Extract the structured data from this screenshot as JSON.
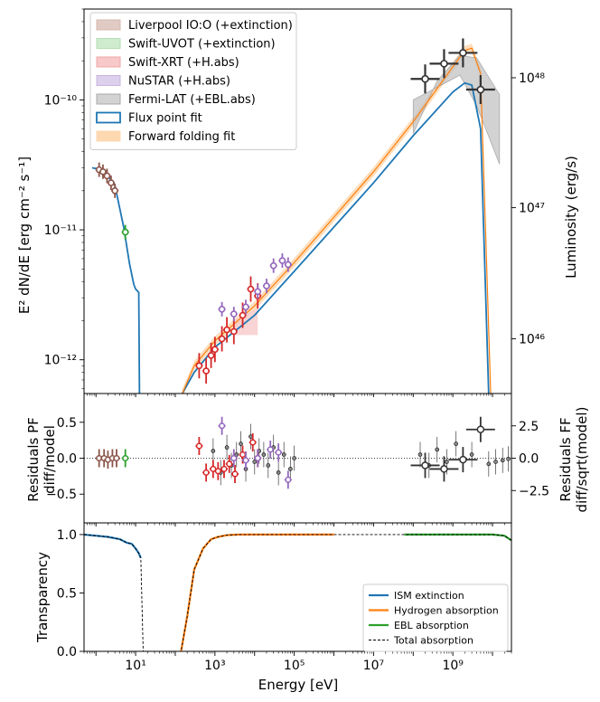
{
  "chart_data": [
    {
      "type": "scatter",
      "panel": "sed",
      "xscale": "log",
      "yscale": "log",
      "xlim": [
        0.5,
        30000000000
      ],
      "ylim": [
        5.5e-13,
        5e-10
      ],
      "ylabel": "E² dN/dE [erg cm⁻² s⁻¹]",
      "y2label": "Luminosity (erg/s)",
      "yticks": [
        {
          "v": 1e-12,
          "label": "10⁻¹²"
        },
        {
          "v": 1e-11,
          "label": "10⁻¹¹"
        },
        {
          "v": 1e-10,
          "label": "10⁻¹⁰"
        }
      ],
      "y2ticks": [
        {
          "v": 1.45e-12,
          "label": "10⁴⁶"
        },
        {
          "v": 1.48e-11,
          "label": "10⁴⁷"
        },
        {
          "v": 1.48e-10,
          "label": "10⁴⁸"
        }
      ],
      "legend_position": "top-left",
      "legend": [
        {
          "label": "Liverpool IO:O (+extinction)",
          "color": "#e0cbc4",
          "stroke": "#d7b8ad"
        },
        {
          "label": "Swift-UVOT (+extinction)",
          "color": "#cfeccf",
          "stroke": "#b2dfb2"
        },
        {
          "label": "Swift-XRT (+H.abs)",
          "color": "#f7c9c9",
          "stroke": "#f0a7a7"
        },
        {
          "label": "NuSTAR (+H.abs)",
          "color": "#ddd0ec",
          "stroke": "#c8b4e2"
        },
        {
          "label": "Fermi-LAT (+EBL.abs)",
          "color": "#d3d3d3",
          "stroke": "#aaaaaa"
        },
        {
          "label": "Flux point fit",
          "color": "#ffffff",
          "stroke": "#1f77b4"
        },
        {
          "label": "Forward folding fit",
          "color": "#fdd8b0",
          "stroke": "#fdd8b0"
        }
      ],
      "series": [
        {
          "name": "Liverpool IO:O (+extinction)",
          "color": "#8c564b",
          "points": [
            [
              1.2,
              2.9e-11
            ],
            [
              1.5,
              2.8e-11
            ],
            [
              1.9,
              2.6e-11
            ],
            [
              2.4,
              2.3e-11
            ],
            [
              3.0,
              2e-11
            ]
          ]
        },
        {
          "name": "Swift-UVOT (+extinction)",
          "color": "#2ca02c",
          "points": [
            [
              5.5,
              9.6e-12
            ]
          ]
        },
        {
          "name": "Swift-XRT (+H.abs)",
          "color": "#d62728",
          "points": [
            [
              400,
              9e-13
            ],
            [
              600,
              8.2e-13
            ],
            [
              800,
              1.08e-12
            ],
            [
              1000,
              1.2e-12
            ],
            [
              1500,
              1.45e-12
            ],
            [
              2000,
              1.7e-12
            ],
            [
              3000,
              1.65e-12
            ],
            [
              5000,
              2.2e-12
            ],
            [
              8000,
              3.5e-12
            ],
            [
              12000,
              3.1e-12
            ]
          ]
        },
        {
          "name": "NuSTAR (+H.abs)",
          "color": "#9467bd",
          "points": [
            [
              1500,
              2.45e-12
            ],
            [
              3000,
              2.25e-12
            ],
            [
              6000,
              2.55e-12
            ],
            [
              12000,
              3.35e-12
            ],
            [
              20000,
              3.7e-12
            ],
            [
              30000,
              5.3e-12
            ],
            [
              50000,
              5.8e-12
            ],
            [
              70000,
              5.4e-12
            ]
          ]
        },
        {
          "name": "Fermi-LAT (+EBL.abs)",
          "color": "#333333",
          "points": [
            [
              200000000,
              1.45e-10
            ],
            [
              600000000,
              1.9e-10
            ],
            [
              1800000000,
              2.3e-10
            ],
            [
              5000000000,
              1.2e-10
            ]
          ]
        }
      ],
      "models": [
        {
          "name": "Flux point fit",
          "color": "#1f77b4",
          "x": [
            0.8,
            1.5,
            3,
            5,
            7,
            9,
            10,
            12,
            12.5
          ],
          "y": [
            3e-11,
            2.9e-11,
            2.2e-11,
            1.05e-11,
            5.5e-12,
            3.8e-12,
            3.5e-12,
            3.3e-12,
            5.5e-13
          ]
        },
        {
          "name": "Flux point fit",
          "color": "#1f77b4",
          "x": [
            150,
            300,
            1000,
            10000,
            100000,
            1000000,
            10000000,
            100000000,
            1000000000,
            2000000000,
            3000000000,
            5000000000,
            8000000000
          ],
          "y": [
            5.5e-13,
            8e-13,
            1.25e-12,
            2.2e-12,
            4.8e-12,
            1.05e-11,
            2.3e-11,
            5.3e-11,
            1.15e-10,
            1.35e-10,
            1.3e-10,
            6e-11,
            5.5e-13
          ]
        },
        {
          "name": "Forward folding fit",
          "color": "#ff7f0e",
          "x": [
            150,
            300,
            1000,
            10000,
            100000,
            1000000,
            10000000,
            100000000,
            1000000000,
            2000000000,
            3000000000,
            5000000000,
            9000000000
          ],
          "y": [
            5.5e-13,
            9e-13,
            1.4e-12,
            2.6e-12,
            5.6e-12,
            1.25e-11,
            2.8e-11,
            6.8e-11,
            1.8e-10,
            2.4e-10,
            2.5e-10,
            1.6e-10,
            5.5e-13
          ]
        }
      ]
    },
    {
      "type": "scatter",
      "panel": "residuals",
      "xscale": "log",
      "xlim": [
        0.5,
        30000000000
      ],
      "ylim": [
        -0.9,
        0.9
      ],
      "ylabel": [
        "Residuals PF",
        "diff/model"
      ],
      "y2label": [
        "Residuals FF",
        "diff/sqrt(model)"
      ],
      "yticks": [
        {
          "v": 0.5,
          "label": "0.5"
        },
        {
          "v": 0.0,
          "label": "0.0"
        },
        {
          "v": -0.5,
          "label": "−0.5"
        }
      ],
      "y2ticks": [
        {
          "v": 0.45,
          "label": "2.5"
        },
        {
          "v": 0.0,
          "label": "0.0"
        },
        {
          "v": -0.45,
          "label": "−2.5"
        }
      ],
      "series": [
        {
          "name": "Liverpool IO:O (+extinction)",
          "color": "#8c564b",
          "points": [
            [
              1.2,
              0.0
            ],
            [
              1.6,
              0.0
            ],
            [
              2.0,
              -0.02
            ],
            [
              2.6,
              0.0
            ],
            [
              3.3,
              0.0
            ]
          ]
        },
        {
          "name": "Swift-UVOT (+extinction)",
          "color": "#2ca02c",
          "points": [
            [
              5.5,
              0.0
            ]
          ]
        },
        {
          "name": "Swift-XRT (+H.abs)",
          "color": "#d62728",
          "points": [
            [
              400,
              0.17
            ],
            [
              600,
              -0.2
            ],
            [
              900,
              -0.15
            ],
            [
              1200,
              -0.18
            ],
            [
              1700,
              -0.15
            ],
            [
              2300,
              -0.08
            ],
            [
              3200,
              -0.22
            ],
            [
              5000,
              0.05
            ],
            [
              9000,
              0.22
            ],
            [
              12000,
              0.0
            ]
          ]
        },
        {
          "name": "NuSTAR (+H.abs)",
          "color": "#9467bd",
          "points": [
            [
              1500,
              0.45
            ],
            [
              3000,
              0.0
            ],
            [
              6000,
              -0.03
            ],
            [
              12000,
              0.0
            ],
            [
              25000,
              0.12
            ],
            [
              40000,
              0.08
            ],
            [
              70000,
              -0.3
            ]
          ]
        },
        {
          "name": "Fermi-LAT (+EBL.abs)",
          "color": "#333333",
          "points": [
            [
              200000000,
              -0.1
            ],
            [
              600000000,
              -0.15
            ],
            [
              1800000000,
              -0.02
            ],
            [
              5000000000,
              0.4
            ]
          ]
        }
      ]
    },
    {
      "type": "line",
      "panel": "transparency",
      "xscale": "log",
      "xlim": [
        0.5,
        30000000000
      ],
      "ylim": [
        0.0,
        1.1
      ],
      "xlabel": "Energy [eV]",
      "ylabel": "Transparency",
      "xticks": [
        {
          "v": 10,
          "label": "10¹"
        },
        {
          "v": 1000,
          "label": "10³"
        },
        {
          "v": 100000,
          "label": "10⁵"
        },
        {
          "v": 10000000,
          "label": "10⁷"
        },
        {
          "v": 1000000000,
          "label": "10⁹"
        }
      ],
      "yticks": [
        {
          "v": 0.0,
          "label": "0.0"
        },
        {
          "v": 0.5,
          "label": "0.5"
        },
        {
          "v": 1.0,
          "label": "1.0"
        }
      ],
      "legend_position": "bottom-right",
      "series": [
        {
          "name": "ISM extinction",
          "color": "#1f77b4",
          "x": [
            0.5,
            1,
            2,
            4,
            6,
            8,
            10,
            12,
            13.5
          ],
          "y": [
            1.0,
            0.99,
            0.98,
            0.96,
            0.93,
            0.92,
            0.88,
            0.84,
            0.8
          ]
        },
        {
          "name": "Hydrogen absorption",
          "color": "#ff7f0e",
          "x": [
            140,
            200,
            300,
            500,
            800,
            1200,
            2000,
            4000,
            10000,
            100000,
            1000000
          ],
          "y": [
            0.0,
            0.3,
            0.7,
            0.88,
            0.96,
            0.98,
            0.995,
            1.0,
            1.0,
            1.0,
            1.0
          ]
        },
        {
          "name": "EBL absorption",
          "color": "#2ca02c",
          "x": [
            60000000,
            100000000,
            1000000000,
            5000000000,
            10000000000,
            20000000000,
            30000000000
          ],
          "y": [
            1.0,
            1.0,
            1.0,
            1.0,
            1.0,
            0.99,
            0.95
          ]
        },
        {
          "name": "Total absorption",
          "color": "#000000",
          "dashed": true,
          "x": [
            0.5,
            1,
            2,
            4,
            6,
            8,
            10,
            12,
            13.5,
            15.5,
            140,
            200,
            300,
            500,
            800,
            1200,
            2000,
            4000,
            10000,
            100000,
            1000000,
            60000000,
            1000000000,
            10000000000,
            20000000000,
            30000000000
          ],
          "y": [
            1.0,
            0.99,
            0.98,
            0.96,
            0.93,
            0.92,
            0.88,
            0.84,
            0.8,
            0.0,
            0.0,
            0.3,
            0.7,
            0.88,
            0.96,
            0.98,
            0.995,
            1.0,
            1.0,
            1.0,
            1.0,
            1.0,
            1.0,
            1.0,
            0.99,
            0.95
          ]
        }
      ]
    }
  ]
}
